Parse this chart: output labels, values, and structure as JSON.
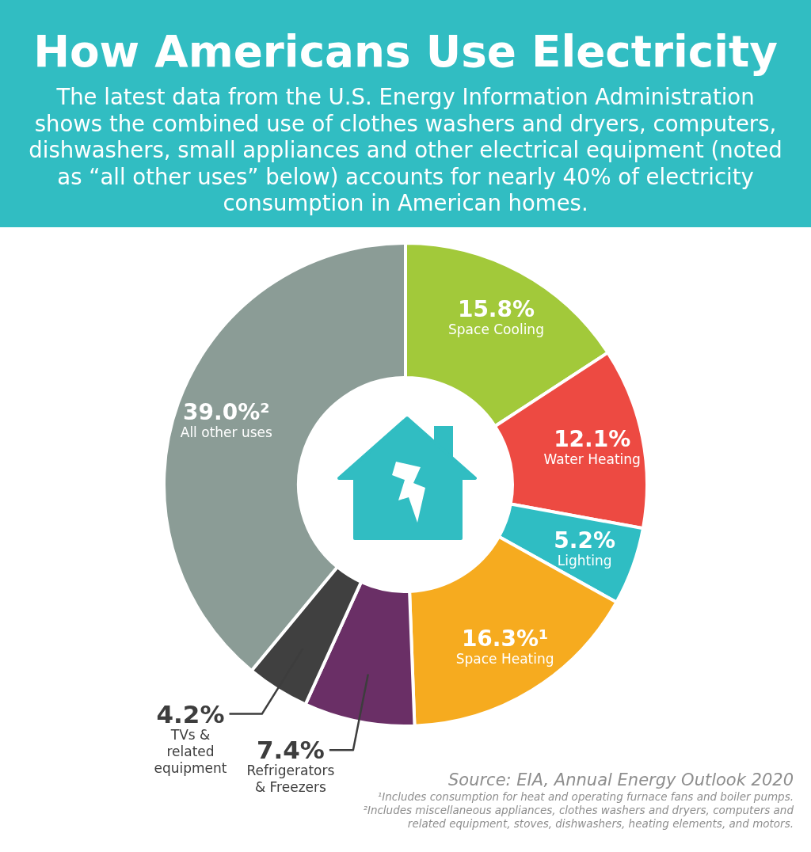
{
  "chart_data": {
    "type": "donut",
    "title": "How Americans Use Electricity",
    "subtitle": "The latest data from the U.S. Energy Information Administration shows the combined use of clothes washers and dryers, computers, dishwashers, small appliances and other electrical equipment (noted as “all other uses” below) accounts for nearly 40% of electricity consumption in American homes.",
    "categories": [
      "Space Cooling",
      "Water Heating",
      "Lighting",
      "Space Heating",
      "Refrigerators & Freezers",
      "TVs & related equipment",
      "All other uses"
    ],
    "values": [
      15.8,
      12.1,
      5.2,
      16.3,
      7.4,
      4.2,
      39.0
    ],
    "colors": [
      "#a2c93a",
      "#ed4a42",
      "#2fbdc3",
      "#f6ab1f",
      "#6a2f66",
      "#404040",
      "#8b9c96"
    ],
    "value_labels": [
      "15.8%",
      "12.1%",
      "5.2%",
      "16.3%¹",
      "7.4%",
      "4.2%",
      "39.0%²"
    ],
    "annotations": [
      "Source: EIA, Annual Energy Outlook 2020",
      "¹Includes consumption for heat and operating furnace fans and boiler pumps.",
      "²Includes miscellaneous appliances, clothes washers and dryers, computers and related equipment, stoves, dishwashers, heating elements, and motors."
    ]
  }
}
